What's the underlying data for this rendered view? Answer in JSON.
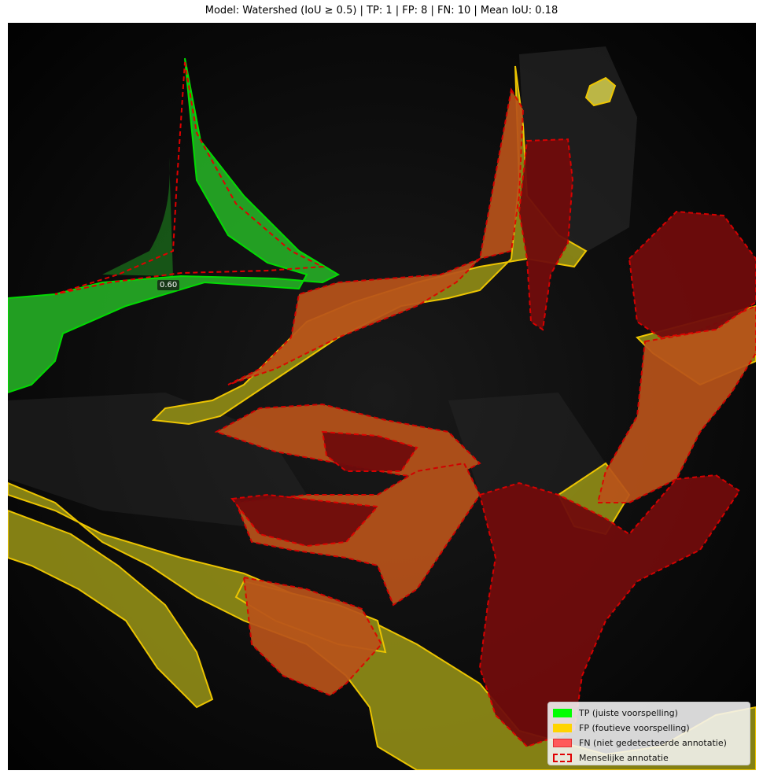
{
  "title": "Model: Watershed (IoU ≥ 0.5) | TP: 1 | FP: 8 | FN: 10 | Mean IoU: 0.18",
  "iou_label": "0.60",
  "legend": [
    {
      "label": "TP (juiste voorspelling)",
      "kind": "fill",
      "color": "#00ff00"
    },
    {
      "label": "FP (foutieve voorspelling)",
      "kind": "fill",
      "color": "#ffd400"
    },
    {
      "label": "FN (niet gedetecteerde annotatie)",
      "kind": "fill",
      "color": "#ff5a5a"
    },
    {
      "label": "Menselijke annotatie",
      "kind": "dashed",
      "color": "#e00000"
    }
  ]
}
